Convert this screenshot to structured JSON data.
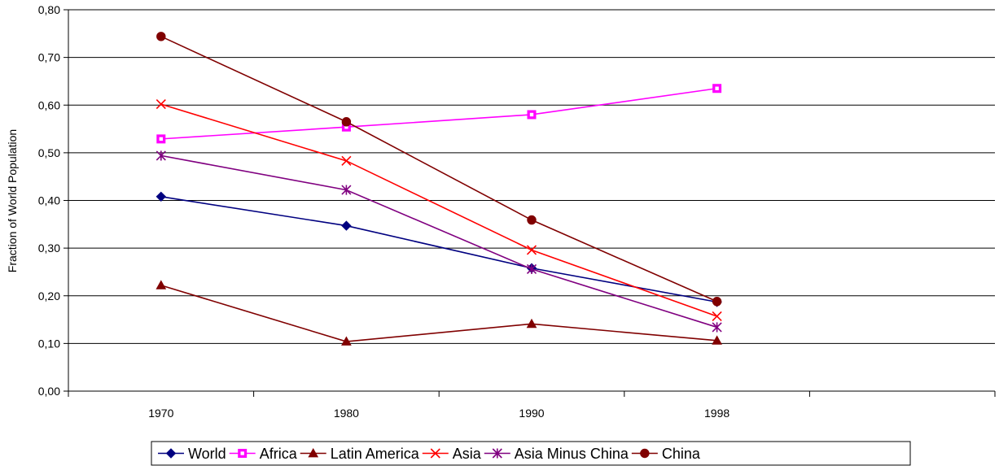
{
  "chart_data": {
    "type": "line",
    "title": "",
    "xlabel": "",
    "ylabel": "Fraction of World Population",
    "categories": [
      "1970",
      "1980",
      "1990",
      "1998"
    ],
    "ylim": [
      0,
      0.8
    ],
    "yticks": [
      0.0,
      0.1,
      0.2,
      0.3,
      0.4,
      0.5,
      0.6,
      0.7,
      0.8
    ],
    "ytick_labels": [
      "0,00",
      "0,10",
      "0,20",
      "0,30",
      "0,40",
      "0,50",
      "0,60",
      "0,70",
      "0,80"
    ],
    "grid": true,
    "legend_position": "bottom",
    "series": [
      {
        "name": "World",
        "color": "#000080",
        "marker": "diamond",
        "values": [
          0.408,
          0.347,
          0.258,
          0.187
        ]
      },
      {
        "name": "Africa",
        "color": "#FF00FF",
        "marker": "square",
        "values": [
          0.529,
          0.554,
          0.58,
          0.635
        ]
      },
      {
        "name": "Latin America",
        "color": "#800000",
        "marker": "triangle",
        "values": [
          0.222,
          0.104,
          0.141,
          0.106
        ]
      },
      {
        "name": "Asia",
        "color": "#FF0000",
        "marker": "x",
        "values": [
          0.602,
          0.483,
          0.296,
          0.157
        ]
      },
      {
        "name": "Asia Minus China",
        "color": "#800080",
        "marker": "asterisk",
        "values": [
          0.494,
          0.422,
          0.256,
          0.134
        ]
      },
      {
        "name": "China",
        "color": "#800000",
        "marker": "circle",
        "values": [
          0.744,
          0.565,
          0.359,
          0.188
        ]
      }
    ]
  }
}
